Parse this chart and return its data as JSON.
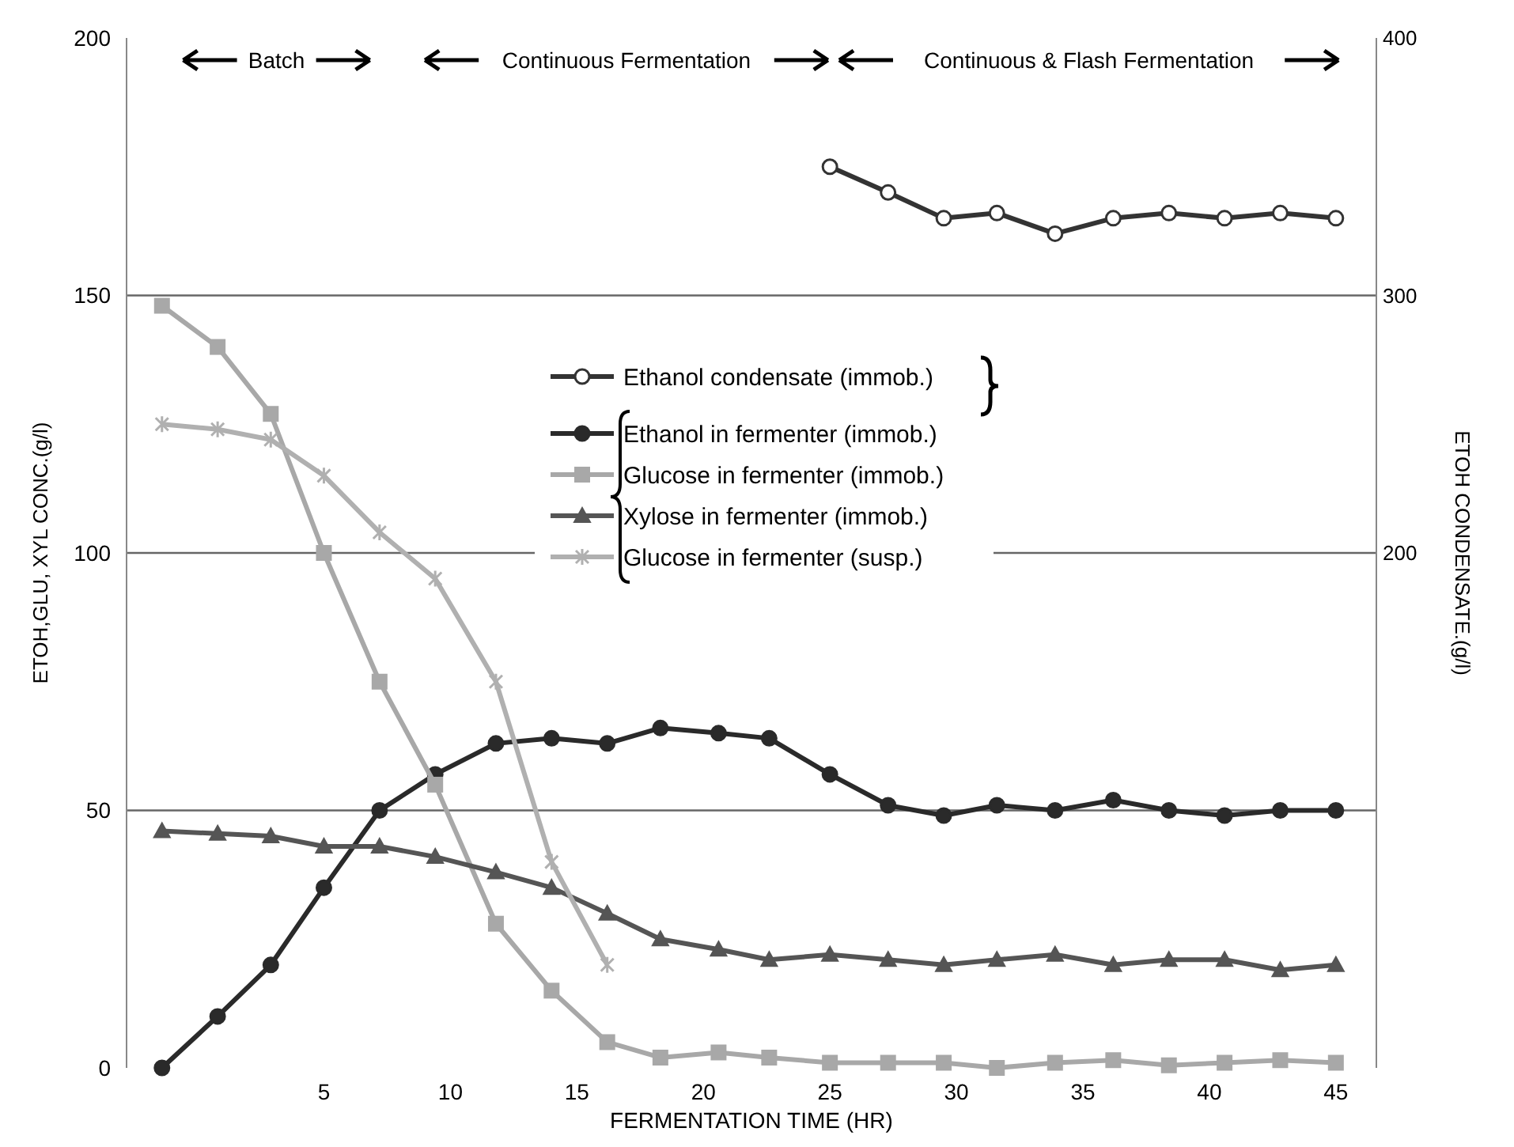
{
  "chart_data": {
    "type": "line",
    "xlabel": "FERMENTATION TIME (HR)",
    "ylabel": "ETOH,GLU, XYL CONC.(g/l)",
    "y2label": "ETOH CONDENSATE.(g/l)",
    "x": [
      -1.4,
      0.8,
      2.9,
      5,
      7.2,
      9.4,
      11.8,
      14,
      16.2,
      18.3,
      20.6,
      22.6,
      25,
      27.3,
      29.5,
      31.6,
      33.9,
      36.2,
      38.4,
      40.6,
      42.8,
      45
    ],
    "xlim": [
      -2.8,
      46.6
    ],
    "xticks": [
      5,
      10,
      15,
      20,
      25,
      30,
      35,
      40,
      45
    ],
    "ylim": [
      0,
      200
    ],
    "yticks": [
      0,
      50,
      100,
      150,
      200
    ],
    "y2lim": [
      0,
      400
    ],
    "y2ticks": [
      200,
      300,
      400
    ],
    "grid": "y",
    "legend": "center",
    "line_style": "solid",
    "series": [
      {
        "name": "Ethanol condensate (immob.)",
        "color": "#333333",
        "marker": "circle",
        "axis": "y2",
        "x": [
          25,
          27.3,
          29.5,
          31.6,
          33.9,
          36.2,
          38.4,
          40.6,
          42.8,
          45
        ],
        "values": [
          350,
          340,
          330,
          332,
          324,
          330,
          332,
          330,
          332,
          330
        ]
      },
      {
        "name": "Ethanol in fermenter (immob.)",
        "color": "#2a2a2a",
        "marker": "circle",
        "values": [
          0,
          10,
          20,
          35,
          50,
          57,
          63,
          64,
          63,
          66,
          65,
          64,
          57,
          51,
          49,
          51,
          50,
          52,
          50,
          49,
          50,
          50
        ]
      },
      {
        "name": "Glucose in fermenter (immob.)",
        "color": "#a8a8a8",
        "marker": "square",
        "values": [
          148,
          140,
          127,
          100,
          75,
          55,
          28,
          15,
          5,
          2,
          3,
          2,
          1,
          1,
          1,
          0,
          1,
          1.5,
          0.5,
          1,
          1.5,
          1
        ]
      },
      {
        "name": "Xylose in fermenter (immob.)",
        "color": "#555555",
        "marker": "triangle",
        "values": [
          46,
          45.5,
          45,
          43,
          43,
          41,
          38,
          35,
          30,
          25,
          23,
          21,
          22,
          21,
          20,
          21,
          22,
          20,
          21,
          21,
          19,
          20
        ]
      },
      {
        "name": "Glucose in fermenter (susp.)",
        "color": "#b0b0b0",
        "marker": "cross",
        "x": [
          -1.4,
          0.8,
          2.9,
          5,
          7.2,
          9.4,
          11.8,
          14,
          16.2
        ],
        "values": [
          125,
          124,
          122,
          115,
          104,
          95,
          75,
          40,
          20
        ]
      }
    ],
    "annotations": [
      "Batch",
      "Continuous Fermentation",
      "Continuous & Flash Fermentation"
    ]
  }
}
